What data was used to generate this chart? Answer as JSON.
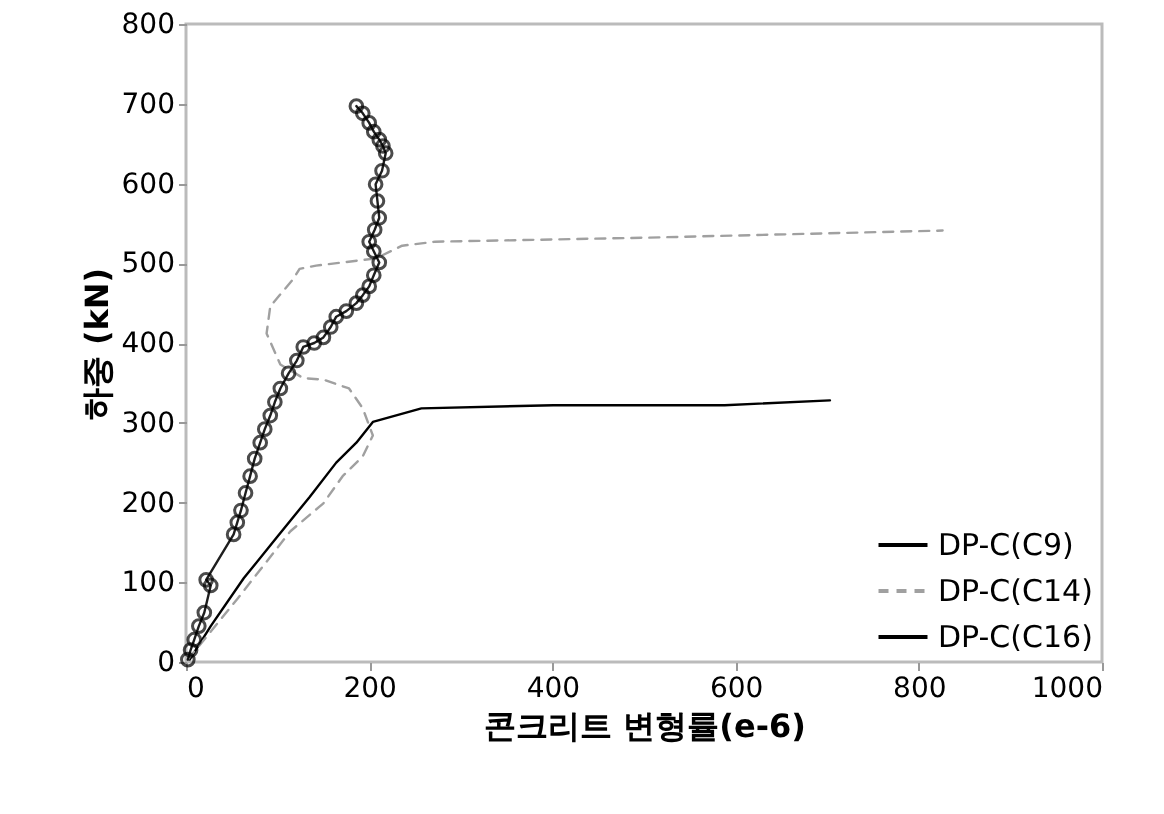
{
  "chart_data": {
    "type": "line",
    "xlabel": "콘크리트 변형률(e-6)",
    "ylabel": "하중 (kN)",
    "xlim": [
      0,
      1000
    ],
    "xticks": [
      0,
      200,
      400,
      600,
      800,
      1000
    ],
    "ylim": [
      0,
      800
    ],
    "yticks": [
      0,
      100,
      200,
      300,
      400,
      500,
      600,
      700,
      800
    ],
    "grid": false,
    "legend": "bottom right",
    "series": [
      {
        "name": "DP-C(C9)",
        "color": "#000000",
        "line_style": "solid",
        "x": [
          4,
          27,
          63,
          99,
          135,
          164,
          186,
          204,
          257,
          401,
          588,
          703
        ],
        "values": [
          3,
          45,
          105,
          156,
          207,
          250,
          275,
          301,
          318,
          322,
          322,
          328
        ]
      },
      {
        "name": "DP-C(C14)",
        "color": "#a0a0a0",
        "line_style": "dashed",
        "x": [
          2,
          56,
          114,
          150,
          171,
          193,
          204,
          193,
          178,
          150,
          128,
          103,
          88,
          92,
          117,
          124,
          142,
          207,
          236,
          272,
          500,
          826
        ],
        "values": [
          3,
          79,
          164,
          199,
          233,
          258,
          284,
          318,
          343,
          354,
          356,
          373,
          412,
          446,
          480,
          493,
          497,
          506,
          522,
          527,
          532,
          541
        ]
      },
      {
        "name": "DP-C(C16)",
        "color": "#000000",
        "line_style": "solid",
        "marker": "circle",
        "x": [
          2,
          5,
          9,
          14,
          20,
          27,
          22,
          52,
          56,
          60,
          65,
          70,
          75,
          81,
          86,
          92,
          97,
          103,
          112,
          121,
          128,
          140,
          150,
          158,
          164,
          175,
          186,
          193,
          200,
          205,
          211,
          205,
          200,
          206,
          211,
          209,
          207,
          214,
          218,
          215,
          211,
          205,
          200,
          193,
          186
        ],
        "values": [
          3,
          15,
          28,
          45,
          62,
          96,
          103,
          160,
          175,
          190,
          212,
          233,
          255,
          275,
          292,
          309,
          326,
          343,
          362,
          378,
          395,
          400,
          407,
          420,
          433,
          440,
          450,
          460,
          471,
          485,
          501,
          515,
          527,
          542,
          557,
          578,
          599,
          616,
          638,
          647,
          655,
          665,
          676,
          688,
          697
        ]
      }
    ]
  }
}
